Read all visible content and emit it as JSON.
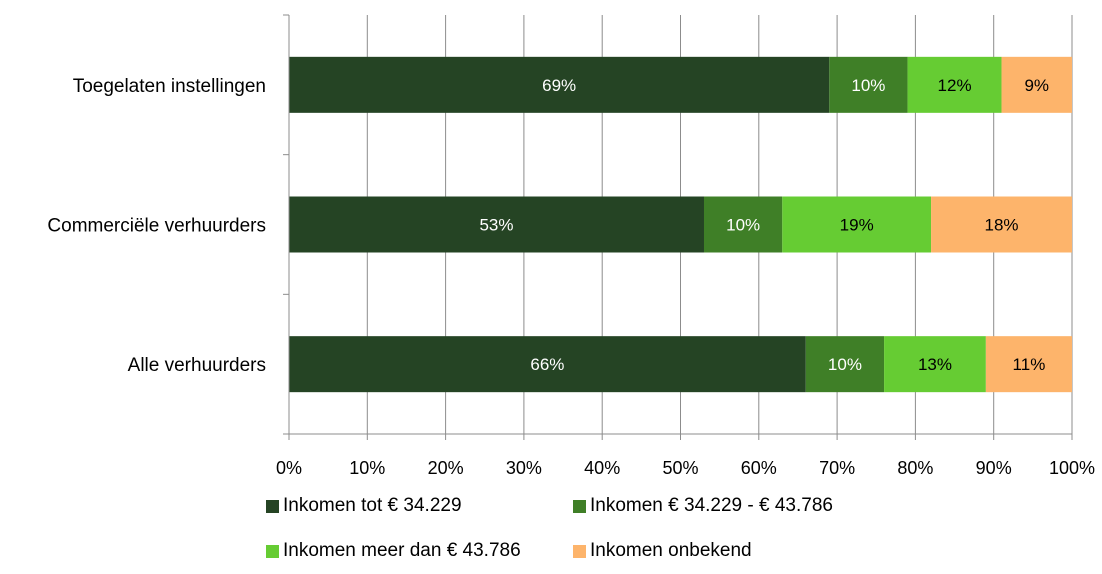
{
  "chart_data": {
    "type": "bar",
    "orientation": "horizontal",
    "stacked": true,
    "title": "",
    "xlabel": "",
    "ylabel": "",
    "xlim": [
      0,
      100
    ],
    "x_ticks": [
      "0%",
      "10%",
      "20%",
      "30%",
      "40%",
      "50%",
      "60%",
      "70%",
      "80%",
      "90%",
      "100%"
    ],
    "categories": [
      "Toegelaten instellingen",
      "Commerciële verhuurders",
      "Alle verhuurders"
    ],
    "series": [
      {
        "name": "Inkomen tot € 34.229",
        "color": "#254424",
        "label_color": "#ffffff",
        "values": [
          69,
          53,
          66
        ],
        "labels": [
          "69%",
          "53%",
          "66%"
        ]
      },
      {
        "name": "Inkomen € 34.229 - € 43.786",
        "color": "#3f7f27",
        "label_color": "#ffffff",
        "values": [
          10,
          10,
          10
        ],
        "labels": [
          "10%",
          "10%",
          "10%"
        ]
      },
      {
        "name": "Inkomen meer dan € 43.786",
        "color": "#66cc33",
        "label_color": "#000000",
        "values": [
          12,
          19,
          13
        ],
        "labels": [
          "12%",
          "19%",
          "13%"
        ]
      },
      {
        "name": "Inkomen onbekend",
        "color": "#fdb46b",
        "label_color": "#000000",
        "values": [
          9,
          18,
          11
        ],
        "labels": [
          "9%",
          "18%",
          "11%"
        ]
      }
    ],
    "grid": true,
    "legend_position": "bottom"
  }
}
